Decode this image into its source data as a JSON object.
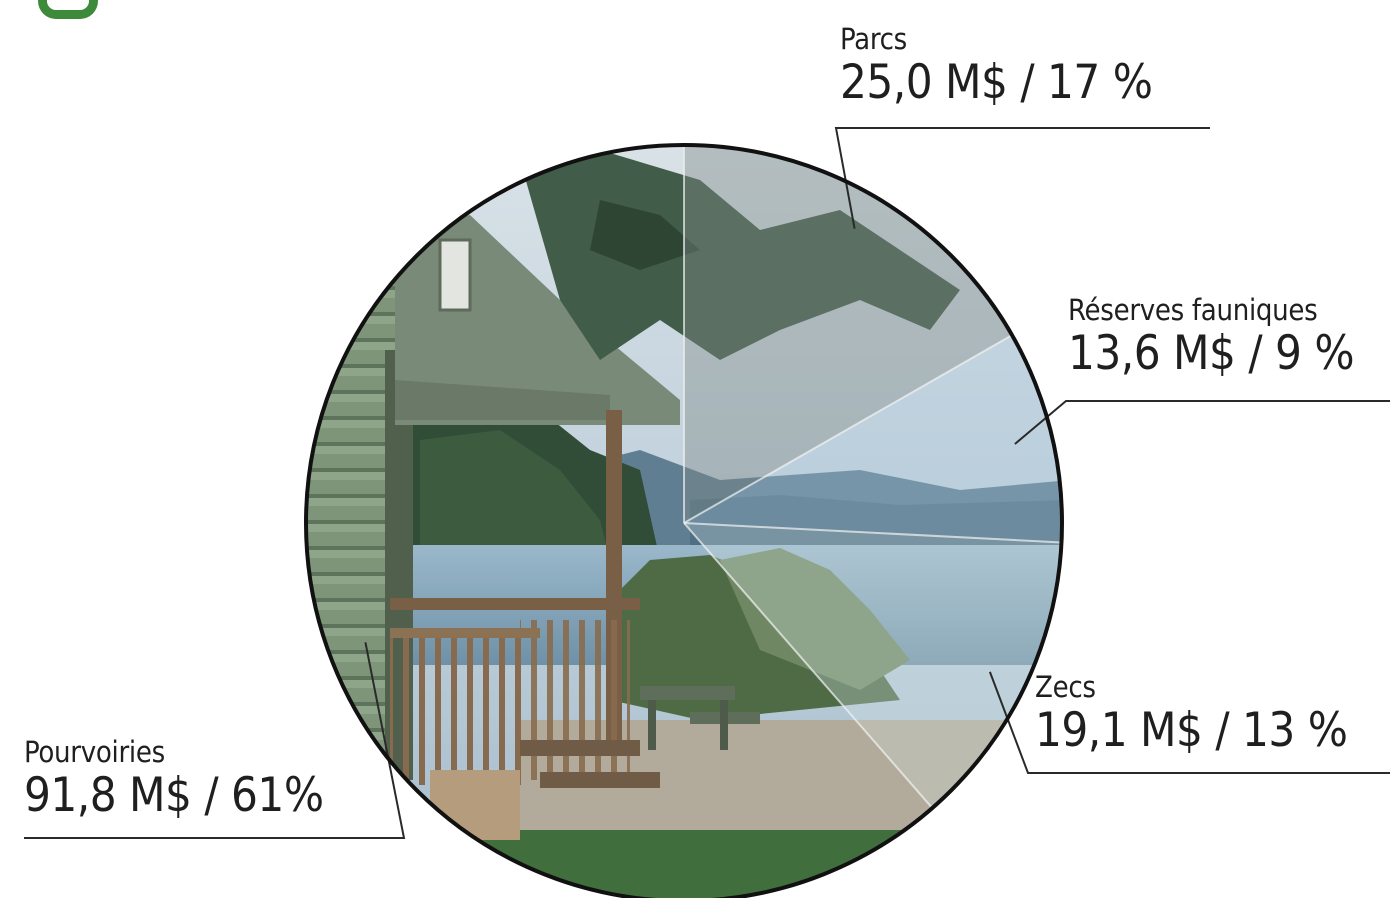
{
  "chart_data": {
    "type": "pie",
    "title": "",
    "series": [
      {
        "values": [
          25.0,
          13.6,
          19.1,
          91.8
        ],
        "categories": [
          "Parcs",
          "Réserves fauniques",
          "Zecs",
          "Pourvoiries"
        ],
        "percent_labels": [
          17,
          9,
          13,
          61
        ]
      }
    ],
    "labels": [
      {
        "name": "Parcs",
        "value_text": "25,0 M$ / 17 %"
      },
      {
        "name": "Réserves fauniques",
        "value_text": "13,6 M$ / 9 %"
      },
      {
        "name": "Zecs",
        "value_text": "19,1 M$ / 13 %"
      },
      {
        "name": "Pourvoiries",
        "value_text": "91,8 M$ / 61%"
      }
    ],
    "legend": "none",
    "start_angle_deg": 0,
    "direction": "clockwise"
  },
  "colors": {
    "slice_tints": [
      "#7f8a88",
      "#a7c0d2",
      "#c9d6d8",
      "#6c7f6e"
    ],
    "sky": "#c8d8e4",
    "water": "#8fb2c7",
    "forest": "#2f4a35",
    "deck": "#8b6f52",
    "house": "#7d9478",
    "gravel": "#b9b0a1",
    "grass": "#3f6e3a",
    "outline": "#111111",
    "brand_mark": "#3d8a3a"
  }
}
